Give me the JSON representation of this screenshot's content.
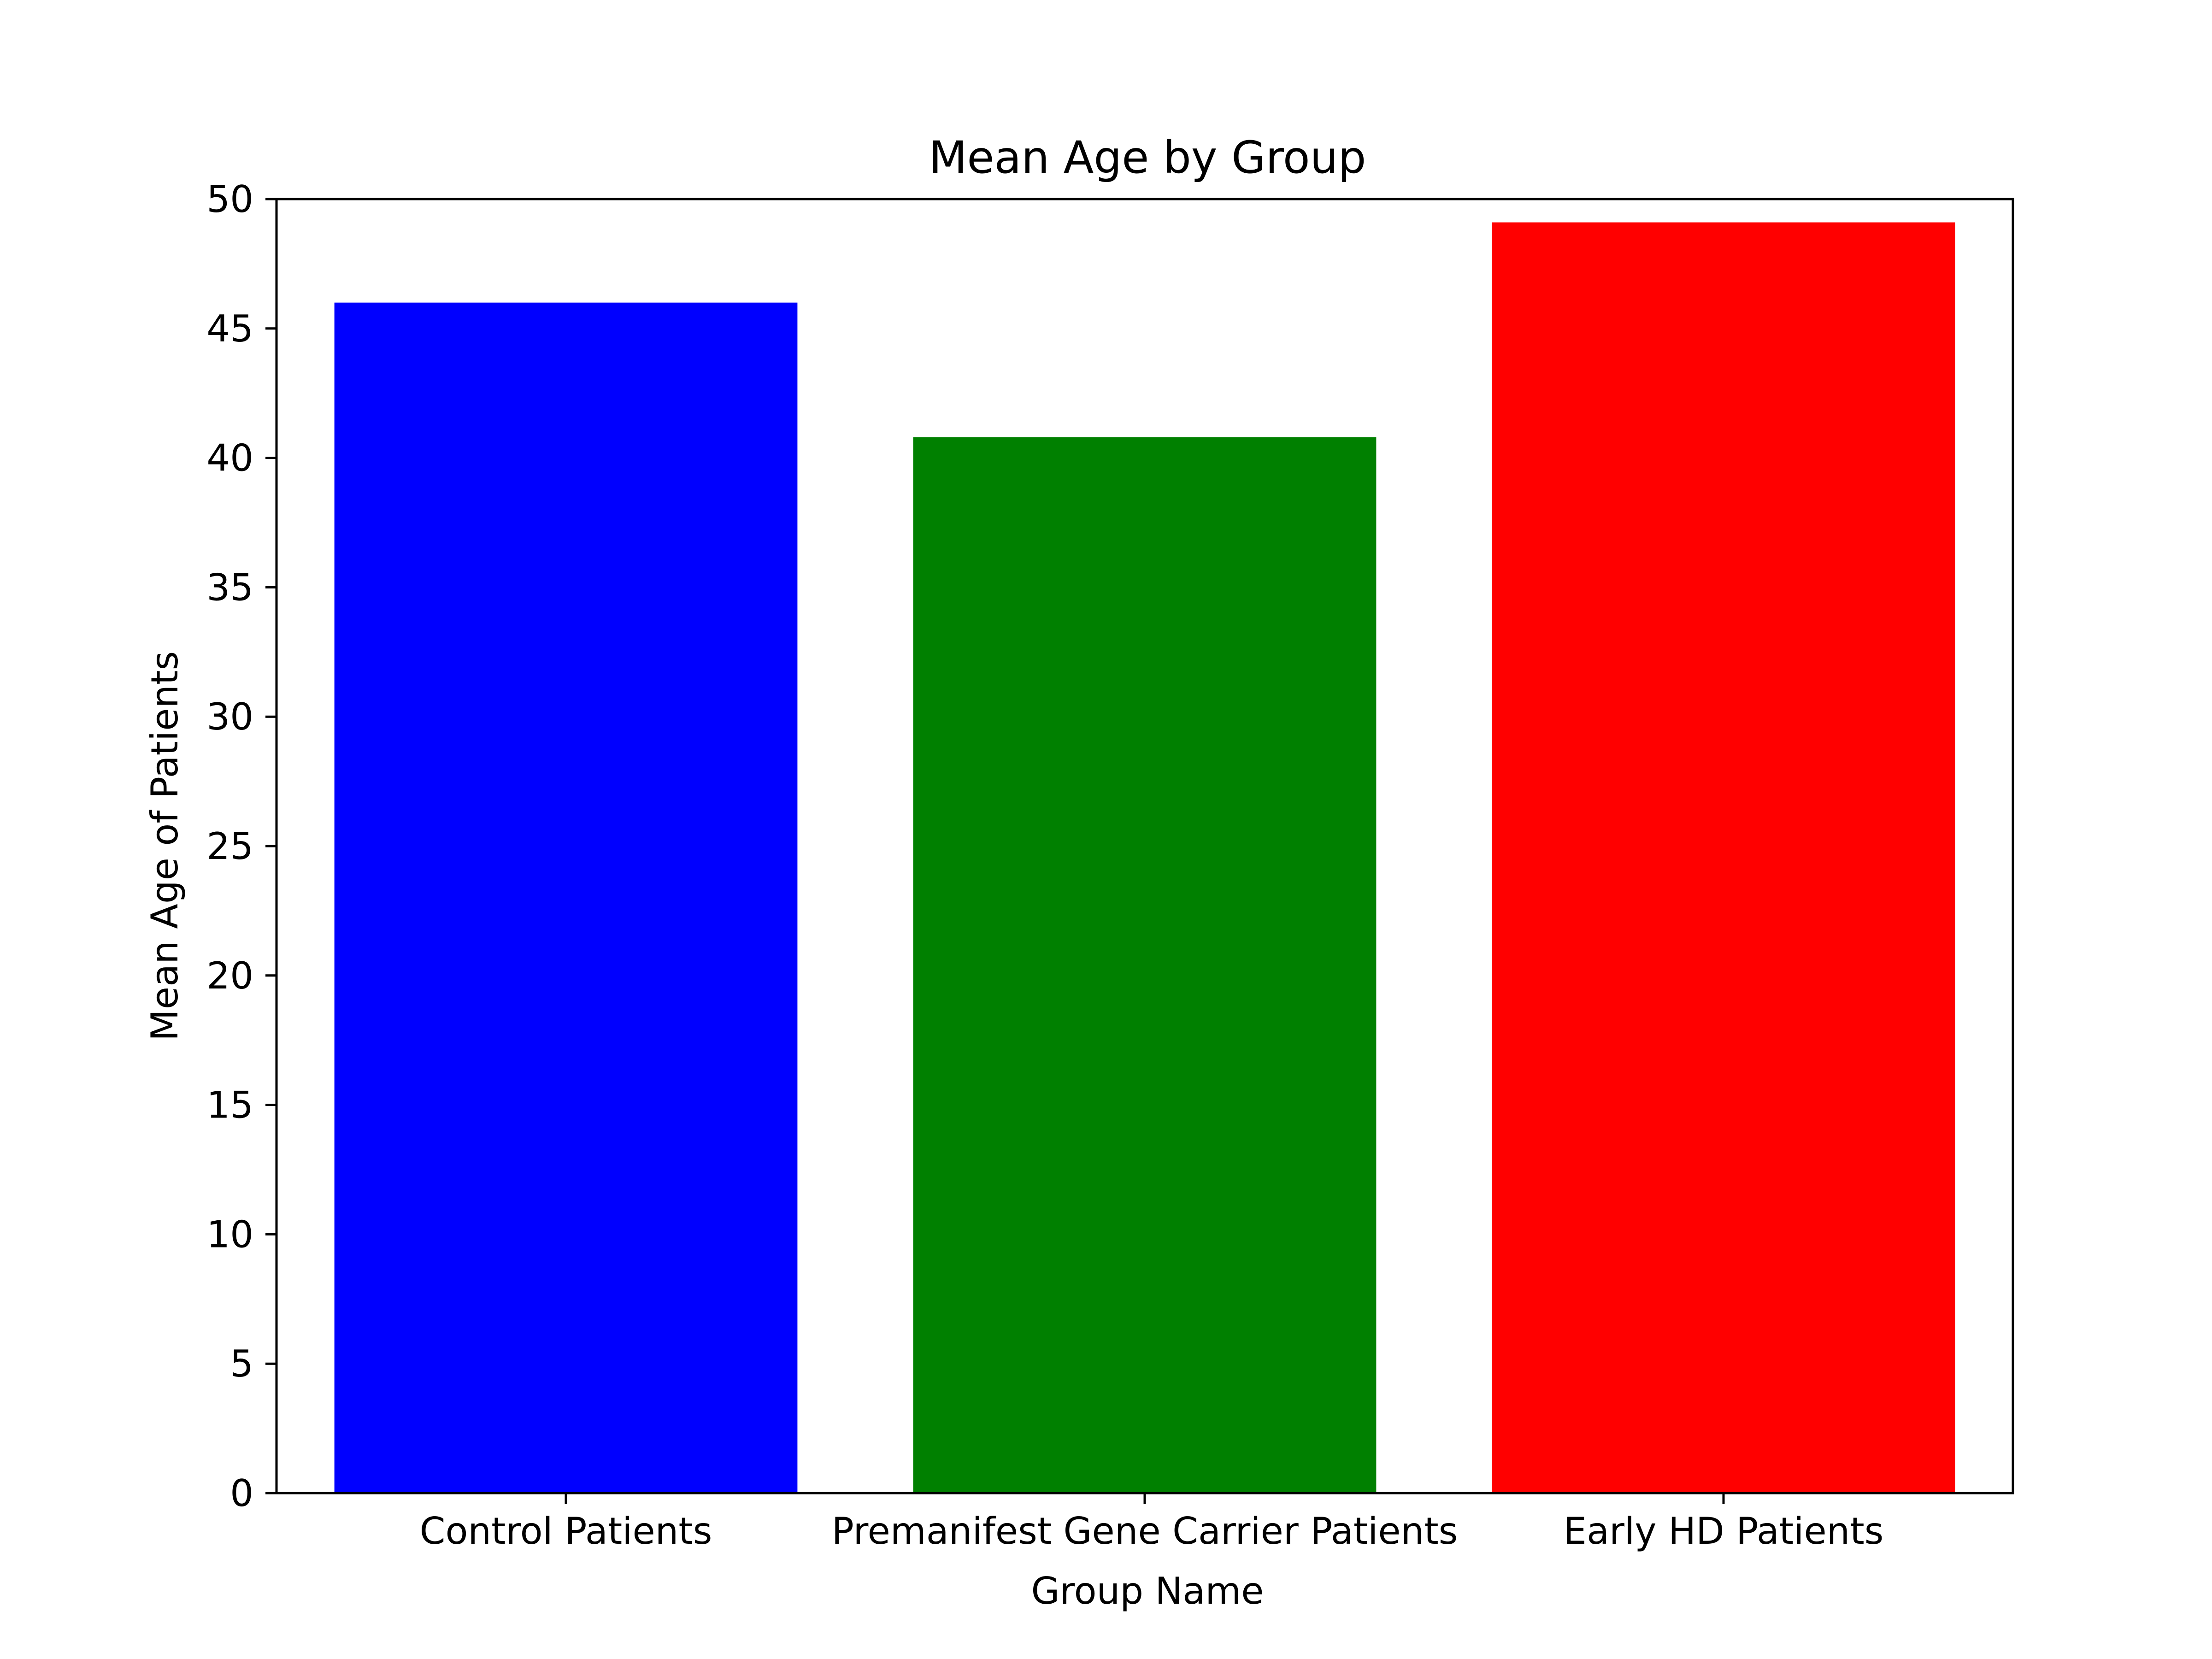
{
  "chart_data": {
    "type": "bar",
    "title": "Mean Age by Group",
    "xlabel": "Group Name",
    "ylabel": "Mean Age of Patients",
    "categories": [
      "Control Patients",
      "Premanifest Gene Carrier Patients",
      "Early HD Patients"
    ],
    "values": [
      46.0,
      40.8,
      49.1
    ],
    "colors": [
      "#0000ff",
      "#008000",
      "#ff0000"
    ],
    "ylim": [
      0,
      50
    ],
    "yticks": [
      0,
      5,
      10,
      15,
      20,
      25,
      30,
      35,
      40,
      45,
      50
    ],
    "grid": false,
    "legend": "none"
  }
}
